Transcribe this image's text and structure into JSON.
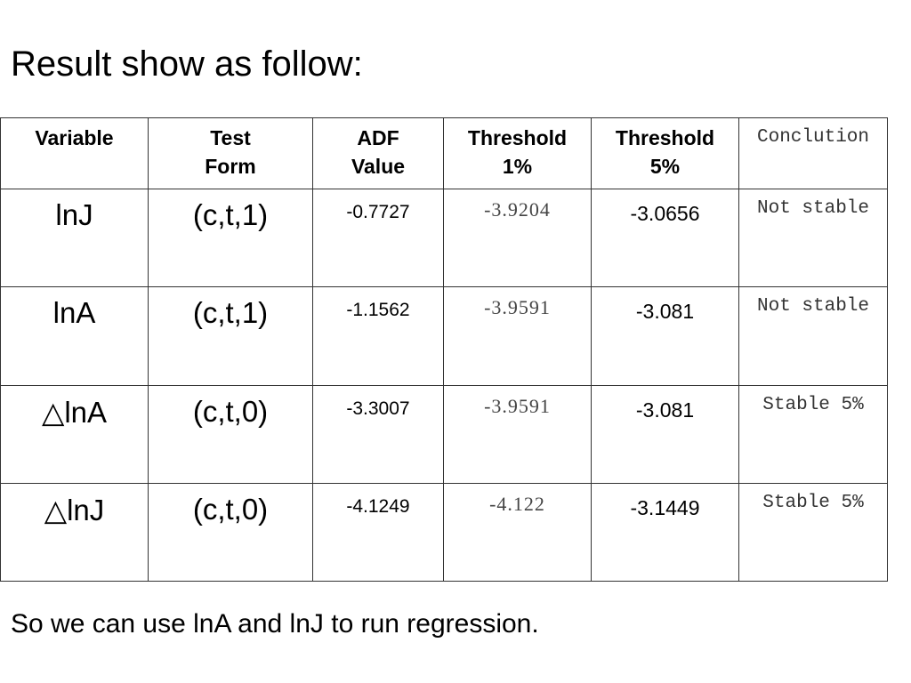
{
  "header": {
    "title": "Result show as follow:"
  },
  "table": {
    "columns": [
      "Variable",
      "Test Form",
      "ADF Value",
      "Threshold 1%",
      "Threshold 5%",
      "Conclution"
    ],
    "rows": [
      [
        "lnJ",
        "(c,t,1)",
        "-0.7727",
        "-3.9204",
        "-3.0656",
        "Not stable"
      ],
      [
        "lnA",
        "(c,t,1)",
        "-1.1562",
        "-3.9591",
        "-3.081",
        "Not stable"
      ],
      [
        "△lnA",
        "(c,t,0)",
        "-3.3007",
        "-3.9591",
        "-3.081",
        "Stable 5%"
      ],
      [
        "△lnJ",
        "(c,t,0)",
        "-4.1249",
        "-4.122",
        "-3.1449",
        "Stable 5%"
      ]
    ]
  },
  "footer": {
    "text": "So we can use lnA and lnJ to run regression."
  }
}
